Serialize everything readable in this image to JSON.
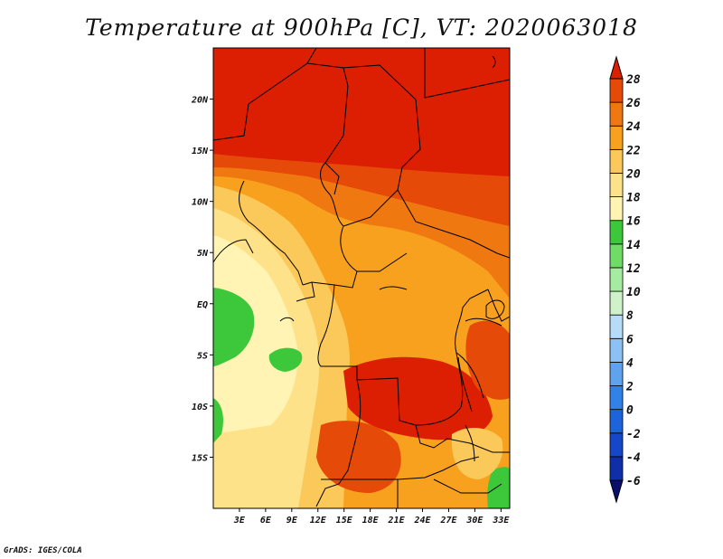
{
  "title": "Temperature at 900hPa [C], VT: 2020063018",
  "credit": "GrADS: IGES/COLA",
  "map": {
    "lon_range": [
      0,
      34
    ],
    "lat_range": [
      -20,
      25
    ],
    "lat_ticks": [
      {
        "value": 20,
        "label": "20N"
      },
      {
        "value": 15,
        "label": "15N"
      },
      {
        "value": 10,
        "label": "10N"
      },
      {
        "value": 5,
        "label": "5N"
      },
      {
        "value": 0,
        "label": "EQ"
      },
      {
        "value": -5,
        "label": "5S"
      },
      {
        "value": -10,
        "label": "10S"
      },
      {
        "value": -15,
        "label": "15S"
      }
    ],
    "lon_ticks": [
      {
        "value": 3,
        "label": "3E"
      },
      {
        "value": 6,
        "label": "6E"
      },
      {
        "value": 9,
        "label": "9E"
      },
      {
        "value": 12,
        "label": "12E"
      },
      {
        "value": 15,
        "label": "15E"
      },
      {
        "value": 18,
        "label": "18E"
      },
      {
        "value": 21,
        "label": "21E"
      },
      {
        "value": 24,
        "label": "24E"
      },
      {
        "value": 27,
        "label": "27E"
      },
      {
        "value": 30,
        "label": "30E"
      },
      {
        "value": 33,
        "label": "33E"
      }
    ]
  },
  "colorbar": {
    "levels": [
      "-6",
      "-4",
      "-2",
      "0",
      "2",
      "4",
      "6",
      "8",
      "10",
      "12",
      "14",
      "16",
      "18",
      "20",
      "22",
      "24",
      "26",
      "28"
    ],
    "colors": [
      "#0a0f6e",
      "#0e2fa8",
      "#1547c8",
      "#1c63dc",
      "#3281e6",
      "#5fa3ee",
      "#8cc1f4",
      "#b6dcf8",
      "#cff2c8",
      "#a6eca0",
      "#6fdc66",
      "#3cc83a",
      "#fff4b4",
      "#fde28a",
      "#fbc85a",
      "#f8a11e",
      "#f07810",
      "#e64a08",
      "#dc1e02"
    ]
  }
}
